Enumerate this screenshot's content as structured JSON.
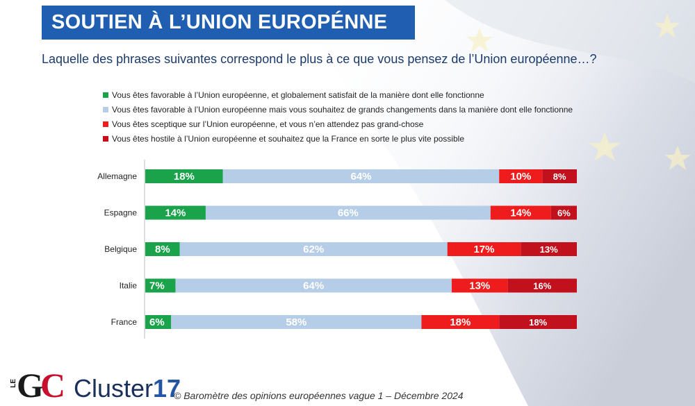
{
  "header": {
    "title": "SOUTIEN À L’UNION EUROPÉNNE",
    "question": "Laquelle des phrases suivantes correspond le plus à ce que vous pensez de l’Union européenne…?"
  },
  "colors": {
    "title_bg": "#1f5eb0",
    "favorable_satisfait": "#1aa34a",
    "favorable_changements": "#b5cde6",
    "sceptique": "#ee1c1c",
    "hostile": "#c0111d"
  },
  "chart_data": {
    "type": "bar",
    "orientation": "horizontal",
    "stacked": true,
    "title": "SOUTIEN À L’UNION EUROPÉNNE",
    "categories": [
      "Allemagne",
      "Espagne",
      "Belgique",
      "Italie",
      "France"
    ],
    "series": [
      {
        "name": "Vous êtes favorable à l’Union européenne, et globalement satisfait de la manière dont elle fonctionne",
        "color": "#1aa34a",
        "values": [
          18,
          14,
          8,
          7,
          6
        ],
        "labels": [
          "18%",
          "14%",
          "8%",
          "7%",
          "6%"
        ]
      },
      {
        "name": "Vous êtes favorable à l’Union européenne mais vous souhaitez de grands changements dans la manière dont elle fonctionne",
        "color": "#b5cde6",
        "values": [
          64,
          66,
          62,
          64,
          58
        ],
        "labels": [
          "64%",
          "66%",
          "62%",
          "64%",
          "58%"
        ]
      },
      {
        "name": "Vous êtes sceptique sur l’Union européenne, et vous n’en attendez pas grand-chose",
        "color": "#ee1c1c",
        "values": [
          10,
          14,
          17,
          13,
          18
        ],
        "labels": [
          "10%",
          "14%",
          "17%",
          "13%",
          "18%"
        ]
      },
      {
        "name": "Vous êtes hostile à l’Union européenne et souhaitez que la France en sorte le plus vite possible",
        "color": "#c0111d",
        "values": [
          8,
          6,
          13,
          16,
          18
        ],
        "labels": [
          "8%",
          "6%",
          "13%",
          "16%",
          "18%"
        ]
      }
    ],
    "xlim": [
      0,
      100
    ],
    "legend": "top-left"
  },
  "footer": {
    "logo_le": "LE",
    "logo_g": "G",
    "logo_c": "C",
    "logo_cluster_text": "Cluster",
    "logo_cluster_num": "17",
    "source": "© Baromètre des opinions européennes vague 1 – Décembre 2024"
  }
}
